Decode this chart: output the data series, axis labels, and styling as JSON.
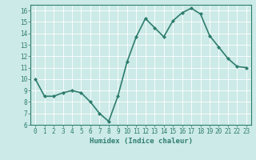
{
  "x": [
    0,
    1,
    2,
    3,
    4,
    5,
    6,
    7,
    8,
    9,
    10,
    11,
    12,
    13,
    14,
    15,
    16,
    17,
    18,
    19,
    20,
    21,
    22,
    23
  ],
  "y": [
    10.0,
    8.5,
    8.5,
    8.8,
    9.0,
    8.8,
    8.0,
    7.0,
    6.3,
    8.5,
    11.5,
    13.7,
    15.3,
    14.5,
    13.7,
    15.1,
    15.8,
    16.2,
    15.7,
    13.8,
    12.8,
    11.8,
    11.1,
    11.0
  ],
  "line_color": "#2e7d6e",
  "marker": "D",
  "marker_size": 2.0,
  "bg_color": "#cceae7",
  "grid_color": "#ffffff",
  "xlabel": "Humidex (Indice chaleur)",
  "xlim": [
    -0.5,
    23.5
  ],
  "ylim": [
    6,
    16.5
  ],
  "yticks": [
    6,
    7,
    8,
    9,
    10,
    11,
    12,
    13,
    14,
    15,
    16
  ],
  "xticks": [
    0,
    1,
    2,
    3,
    4,
    5,
    6,
    7,
    8,
    9,
    10,
    11,
    12,
    13,
    14,
    15,
    16,
    17,
    18,
    19,
    20,
    21,
    22,
    23
  ],
  "tick_color": "#2e7d6e",
  "label_color": "#2e7d6e",
  "axis_color": "#2e7d6e",
  "tick_fontsize": 5.5,
  "xlabel_fontsize": 6.5,
  "line_width": 1.2
}
